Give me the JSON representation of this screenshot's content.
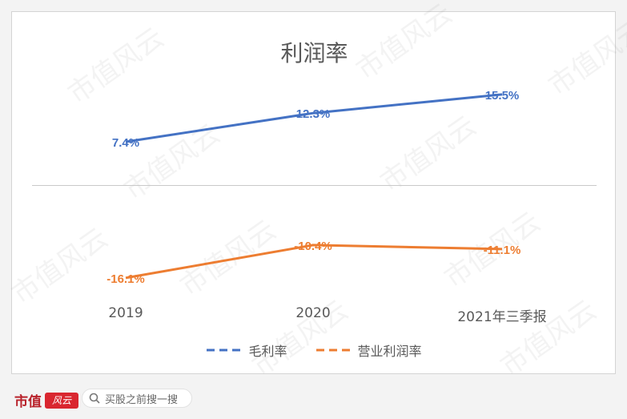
{
  "chart_data": {
    "type": "line",
    "title": "利润率",
    "categories": [
      "2019",
      "2020",
      "2021年三季报"
    ],
    "series": [
      {
        "name": "毛利率",
        "values": [
          7.4,
          12.3,
          15.5
        ],
        "labels": [
          "7.4%",
          "12.3%",
          "15.5%"
        ],
        "color": "#4472c4"
      },
      {
        "name": "营业利润率",
        "values": [
          -16.1,
          -10.4,
          -11.1
        ],
        "labels": [
          "-16.1%",
          "-10.4%",
          "-11.1%"
        ],
        "color": "#ed7d31"
      }
    ],
    "xlabel": "",
    "ylabel": "",
    "ylim": [
      -20,
      20
    ],
    "grid": false,
    "legend": "bottom"
  },
  "watermark": "市值风云",
  "footer": {
    "brand": "市值",
    "brand_seal": "风云",
    "search_placeholder": "买股之前搜一搜"
  },
  "icons": [
    "search-icon"
  ]
}
